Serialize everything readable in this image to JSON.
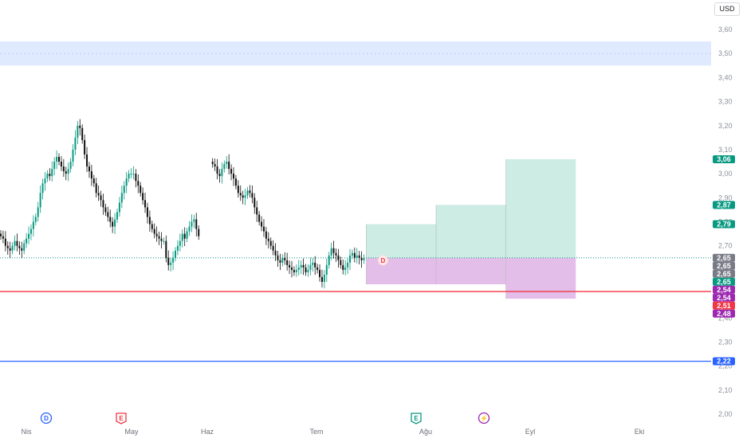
{
  "currency": "USD",
  "chart_data": {
    "type": "candlestick",
    "y_axis_ticks": [
      "3,60",
      "3,50",
      "3,40",
      "3,30",
      "3,20",
      "3,10",
      "3,00",
      "2,90",
      "2,80",
      "2,70",
      "2,60",
      "2,50",
      "2,40",
      "2,30",
      "2,20",
      "2,10",
      "2,00"
    ],
    "ylim": [
      2.0,
      3.6
    ],
    "x_axis_labels": [
      "Nis",
      "May",
      "Haz",
      "Tem",
      "Ağu",
      "Eyl",
      "Eki"
    ],
    "price_series": {
      "segments": [
        {
          "start_day": 0,
          "closes": [
            2.74,
            2.73,
            2.7,
            2.69,
            2.68,
            2.7,
            2.72,
            2.7,
            2.69,
            2.68,
            2.71,
            2.73,
            2.75,
            2.77,
            2.8,
            2.82,
            2.86,
            2.92,
            2.96,
            2.98,
            3.0,
            2.99,
            3.02,
            3.05,
            3.07,
            3.05,
            3.03,
            3.01,
            3.0,
            3.02,
            3.05,
            3.1,
            3.15,
            3.2,
            3.19,
            3.14,
            3.08,
            3.03,
            3.01,
            2.98,
            2.96,
            2.92,
            2.91,
            2.89,
            2.86,
            2.84,
            2.82,
            2.8,
            2.78,
            2.81,
            2.84,
            2.88,
            2.92,
            2.95,
            2.98,
            3.0,
            3.0,
            3.0,
            2.97,
            2.95,
            2.92,
            2.89,
            2.86,
            2.82,
            2.79,
            2.77,
            2.75,
            2.74,
            2.73,
            2.72,
            2.72,
            2.65,
            2.62,
            2.63,
            2.65,
            2.68,
            2.7,
            2.72,
            2.75,
            2.73,
            2.76,
            2.78,
            2.8,
            2.81,
            2.77,
            2.74
          ]
        },
        {
          "start_day": 91,
          "closes": [
            3.04,
            3.03,
            3.0,
            2.99,
            3.02,
            3.04,
            3.05,
            3.02,
            3.0,
            2.98,
            2.95,
            2.92,
            2.91,
            2.9,
            2.91,
            2.93,
            2.92,
            2.9,
            2.86,
            2.83,
            2.8,
            2.78,
            2.76,
            2.73,
            2.72,
            2.7,
            2.68,
            2.66,
            2.64,
            2.63,
            2.65,
            2.64,
            2.62,
            2.61,
            2.6,
            2.59,
            2.6,
            2.61,
            2.62,
            2.61,
            2.59,
            2.6,
            2.62,
            2.63,
            2.61,
            2.6,
            2.57,
            2.55,
            2.58,
            2.62,
            2.66,
            2.69,
            2.67,
            2.66,
            2.64,
            2.62,
            2.6,
            2.61,
            2.63,
            2.66,
            2.67,
            2.65,
            2.66,
            2.65,
            2.64,
            2.65
          ]
        }
      ]
    },
    "price_labels": [
      {
        "text": "3,06",
        "value": 3.06,
        "color": "#089981"
      },
      {
        "text": "2,87",
        "value": 2.87,
        "color": "#089981"
      },
      {
        "text": "2,79",
        "value": 2.79,
        "color": "#089981"
      },
      {
        "text": "2,65",
        "value": 2.65,
        "color": "#787b86"
      },
      {
        "text": "2,65",
        "value": 2.65,
        "color": "#787b86"
      },
      {
        "text": "2,65",
        "value": 2.65,
        "color": "#787b86"
      },
      {
        "text": "2,65",
        "value": 2.65,
        "color": "#089981"
      },
      {
        "text": "2,54",
        "value": 2.54,
        "color": "#9c27b0"
      },
      {
        "text": "2,54",
        "value": 2.54,
        "color": "#9c27b0"
      },
      {
        "text": "2,51",
        "value": 2.51,
        "color": "#f23645"
      },
      {
        "text": "2,48",
        "value": 2.48,
        "color": "#9c27b0"
      },
      {
        "text": "2,22",
        "value": 2.22,
        "color": "#2962ff"
      }
    ],
    "zones": [
      {
        "kind": "resistance-band",
        "low": 3.45,
        "high": 3.55,
        "color": "#dbe6ff"
      }
    ],
    "horizontal_lines": [
      {
        "value": 2.51,
        "color": "#f23645"
      },
      {
        "value": 2.22,
        "color": "#2962ff"
      },
      {
        "value": 2.65,
        "color": "#089981",
        "style": "dotted"
      }
    ],
    "targets": [
      {
        "from_day": 157,
        "to_day": 187,
        "top": 2.79,
        "bottom": 2.54
      },
      {
        "from_day": 187,
        "to_day": 217,
        "top": 2.87,
        "bottom": 2.54
      },
      {
        "from_day": 217,
        "to_day": 247,
        "top": 3.06,
        "bottom": 2.48
      }
    ],
    "events": [
      {
        "letter": "D",
        "color": "#2962ff"
      },
      {
        "letter": "E",
        "color": "#f23645"
      },
      {
        "letter": "E",
        "color": "#089981"
      },
      {
        "letter": "⚡",
        "color": "#9c27b0"
      }
    ],
    "latest_marker": {
      "letter": "D",
      "color": "#f23645",
      "value": 2.65
    },
    "grid": false,
    "colors": {
      "up": "#089981",
      "down": "#111111"
    }
  }
}
